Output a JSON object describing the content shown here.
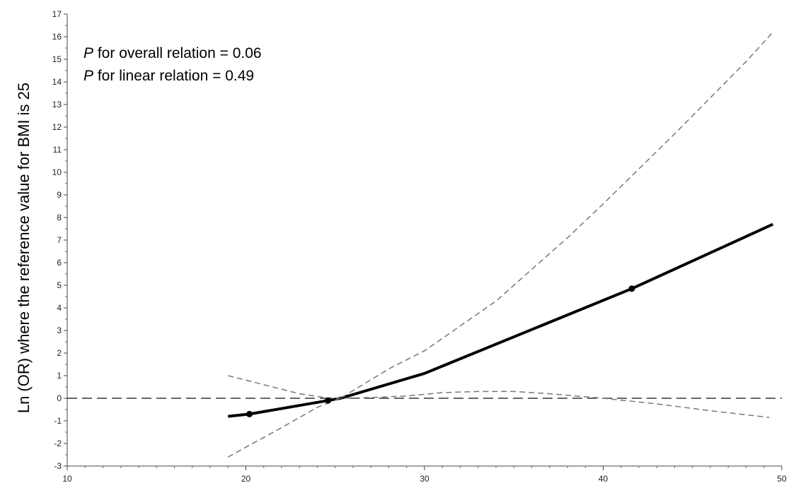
{
  "chart_data": {
    "type": "line",
    "title": "",
    "xlabel": "",
    "ylabel": "Ln (OR) where the reference value for BMI is 25",
    "xlim": [
      10,
      50
    ],
    "ylim": [
      -3,
      17
    ],
    "x_ticks": [
      10,
      20,
      30,
      40,
      50
    ],
    "y_ticks": [
      -3,
      -2,
      -1,
      0,
      1,
      2,
      3,
      4,
      5,
      6,
      7,
      8,
      9,
      10,
      11,
      12,
      13,
      14,
      15,
      16,
      17
    ],
    "grid": false,
    "annotations": [
      {
        "p": "P",
        "text": " for overall relation = 0.06"
      },
      {
        "p": "P",
        "text": " for linear relation = 0.49"
      }
    ],
    "reference_line": {
      "y": 0,
      "style": "dashed"
    },
    "series": [
      {
        "role": "estimate",
        "style": "solid-thick",
        "x": [
          19,
          20.2,
          24.6,
          25.3,
          30,
          41.6,
          49.5
        ],
        "y": [
          -0.8,
          -0.7,
          -0.1,
          0,
          1.1,
          4.85,
          7.7
        ]
      },
      {
        "role": "upper-ci",
        "style": "dashed",
        "x": [
          19,
          22,
          24,
          25.3,
          28,
          30,
          34,
          38,
          40,
          44,
          48,
          49.5
        ],
        "y": [
          -2.6,
          -1.3,
          -0.4,
          0,
          1.3,
          2.1,
          4.3,
          7.1,
          8.6,
          11.7,
          14.9,
          16.2
        ]
      },
      {
        "role": "lower-ci",
        "style": "dashed",
        "x": [
          19,
          21,
          23,
          24.5,
          25.3,
          27,
          29,
          31,
          33,
          35,
          37,
          40,
          43,
          46,
          49.3
        ],
        "y": [
          1.0,
          0.6,
          0.2,
          0.02,
          0,
          0.03,
          0.1,
          0.25,
          0.3,
          0.3,
          0.2,
          0,
          -0.25,
          -0.55,
          -0.85
        ]
      }
    ],
    "markers": {
      "x": [
        20.2,
        24.6,
        41.6
      ],
      "y": [
        -0.7,
        -0.1,
        4.85
      ]
    }
  }
}
